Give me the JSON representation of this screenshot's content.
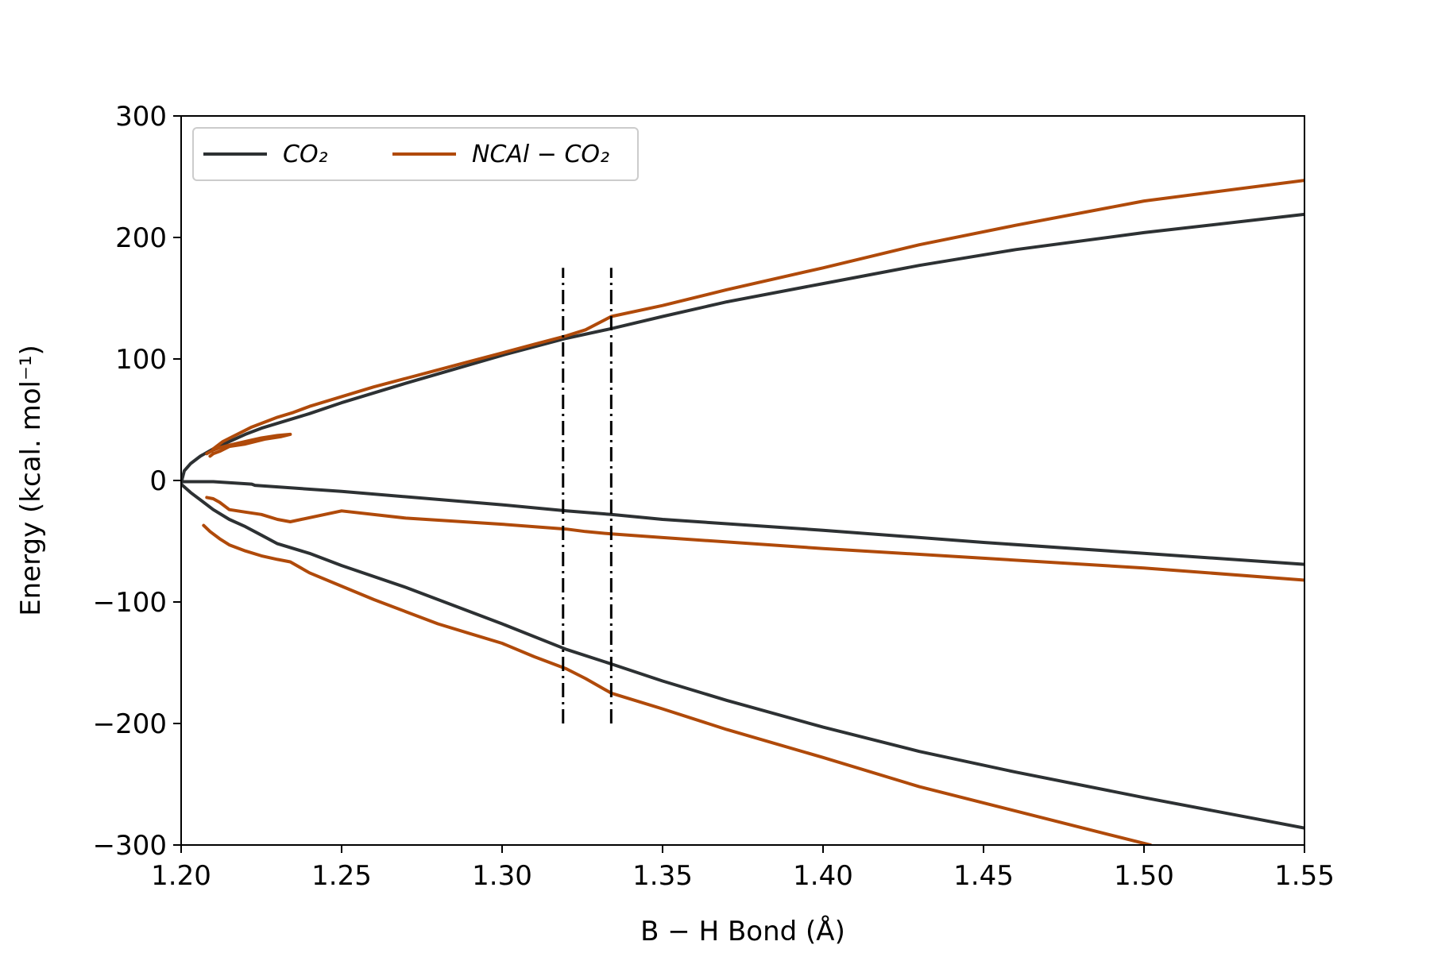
{
  "chart_data": {
    "type": "line",
    "xlabel": "B − H Bond (Å)",
    "ylabel": "Energy (kcal. mol⁻¹)",
    "xlim": [
      1.2,
      1.55
    ],
    "ylim": [
      -300,
      300
    ],
    "xticks": [
      "1.20",
      "1.25",
      "1.30",
      "1.35",
      "1.40",
      "1.45",
      "1.50",
      "1.55"
    ],
    "yticks": [
      "300",
      "200",
      "100",
      "0",
      "−100",
      "−200",
      "−300"
    ],
    "legend_position": "upper-left",
    "legend_columns": 2,
    "grid": false,
    "colors": {
      "co2": "#2d3133",
      "ncal": "#b04a0a",
      "marker": "#000000"
    },
    "series": [
      {
        "name": "CO₂",
        "color_key": "co2",
        "branches": [
          {
            "x": [
              1.2,
              1.201,
              1.203,
              1.206,
              1.21,
              1.215,
              1.22,
              1.225,
              1.23,
              1.24,
              1.25,
              1.27,
              1.3,
              1.32,
              1.334,
              1.35,
              1.37,
              1.4,
              1.43,
              1.46,
              1.5,
              1.55
            ],
            "y": [
              -2,
              8,
              14,
              20,
              26,
              32,
              38,
              43,
              47,
              55,
              64,
              80,
              103,
              117,
              125,
              135,
              147,
              162,
              177,
              190,
              204,
              219
            ]
          },
          {
            "x": [
              1.2,
              1.21,
              1.222,
              1.223,
              1.25,
              1.3,
              1.32,
              1.334,
              1.35,
              1.4,
              1.45,
              1.5,
              1.55
            ],
            "y": [
              -1,
              -1,
              -3,
              -4,
              -9,
              -20,
              -25,
              -28,
              -32,
              -41,
              -51,
              -60,
              -69
            ]
          },
          {
            "x": [
              1.2,
              1.203,
              1.207,
              1.21,
              1.215,
              1.22,
              1.225,
              1.23,
              1.24,
              1.25,
              1.27,
              1.3,
              1.32,
              1.334,
              1.35,
              1.37,
              1.4,
              1.43,
              1.46,
              1.5,
              1.55
            ],
            "y": [
              -3,
              -10,
              -18,
              -24,
              -32,
              -38,
              -45,
              -52,
              -60,
              -70,
              -88,
              -118,
              -139,
              -151,
              -165,
              -181,
              -203,
              -223,
              -240,
              -261,
              -286
            ]
          }
        ]
      },
      {
        "name": "NCAl − CO₂",
        "color_key": "ncal",
        "branches": [
          {
            "x": [
              1.208,
              1.21,
              1.212,
              1.215,
              1.22,
              1.225,
              1.23,
              1.234,
              1.231,
              1.226,
              1.22,
              1.215,
              1.212,
              1.21,
              1.209
            ],
            "y": [
              22,
              25,
              27,
              29,
              32,
              35,
              37,
              38,
              36,
              34,
              30,
              28,
              24,
              22,
              20
            ]
          },
          {
            "x": [
              1.21,
              1.213,
              1.216,
              1.219,
              1.222,
              1.225,
              1.23,
              1.235,
              1.24,
              1.25,
              1.26,
              1.27,
              1.28,
              1.29,
              1.3,
              1.31,
              1.32,
              1.326,
              1.334,
              1.35,
              1.37,
              1.4,
              1.43,
              1.46,
              1.5,
              1.55
            ],
            "y": [
              26,
              32,
              36,
              40,
              44,
              47,
              52,
              56,
              61,
              69,
              77,
              84,
              91,
              98,
              105,
              112,
              119,
              124,
              135,
              144,
              157,
              175,
              194,
              210,
              230,
              247
            ]
          },
          {
            "x": [
              1.208,
              1.21,
              1.212,
              1.215,
              1.22,
              1.225,
              1.23,
              1.234,
              1.25,
              1.27,
              1.3,
              1.32,
              1.326,
              1.334,
              1.35,
              1.4,
              1.45,
              1.5,
              1.55
            ],
            "y": [
              -14,
              -15,
              -18,
              -24,
              -26,
              -28,
              -32,
              -34,
              -25,
              -31,
              -36,
              -40,
              -42,
              -44,
              -47,
              -56,
              -64,
              -72,
              -82
            ]
          },
          {
            "x": [
              1.207,
              1.209,
              1.212,
              1.215,
              1.22,
              1.225,
              1.23,
              1.234,
              1.24,
              1.25,
              1.26,
              1.27,
              1.28,
              1.29,
              1.3,
              1.31,
              1.32,
              1.326,
              1.334,
              1.35,
              1.37,
              1.4,
              1.43,
              1.46,
              1.49,
              1.502
            ],
            "y": [
              -37,
              -42,
              -48,
              -53,
              -58,
              -62,
              -65,
              -67,
              -76,
              -87,
              -98,
              -108,
              -118,
              -126,
              -134,
              -145,
              -155,
              -163,
              -175,
              -188,
              -205,
              -228,
              -252,
              -272,
              -292,
              -300
            ]
          }
        ]
      }
    ],
    "reference_lines": [
      {
        "x": 1.319,
        "y": [
          -200,
          175
        ],
        "style": "dash-dot"
      },
      {
        "x": 1.334,
        "y": [
          -200,
          175
        ],
        "style": "dash-dot"
      }
    ]
  }
}
